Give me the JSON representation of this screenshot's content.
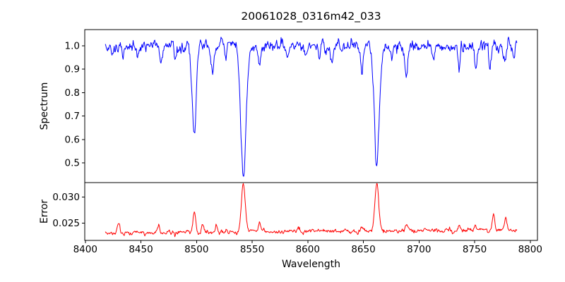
{
  "figure": {
    "title": "20061028_0316m42_033",
    "xlabel": "Wavelength",
    "background": "#ffffff",
    "axis_color": "#000000"
  },
  "chart_data": [
    {
      "type": "line",
      "panel": "spectrum",
      "title": "20061028_0316m42_033",
      "xlabel": "Wavelength",
      "ylabel": "Spectrum",
      "legend": null,
      "grid": false,
      "color": "#0000ff",
      "xlim": [
        8399.5,
        8806.5
      ],
      "ylim": [
        0.4157,
        1.0693
      ],
      "x_ticks": [
        8400,
        8450,
        8500,
        8550,
        8600,
        8650,
        8700,
        8750,
        8800
      ],
      "x_tick_labels": [
        "8400",
        "8450",
        "8500",
        "8550",
        "8600",
        "8650",
        "8700",
        "8750",
        "8800"
      ],
      "y_ticks": [
        0.5,
        0.6,
        0.7,
        0.8,
        0.9,
        1.0
      ],
      "y_tick_labels": [
        "0.5",
        "0.6",
        "0.7",
        "0.8",
        "0.9",
        "1.0"
      ],
      "samples": {
        "x_start": 8418,
        "x_end": 8788,
        "step": 0.5
      },
      "continuum": 1.0,
      "noise_sigma": 0.011,
      "noise_corr": 0.55,
      "noise_seed": 1337,
      "absorption_lines": [
        {
          "center": 8424.0,
          "depth": 0.04,
          "sigma": 1.0
        },
        {
          "center": 8434.0,
          "depth": 0.042,
          "sigma": 1.0
        },
        {
          "center": 8447.0,
          "depth": 0.035,
          "sigma": 1.0
        },
        {
          "center": 8468.0,
          "depth": 0.06,
          "sigma": 1.2
        },
        {
          "center": 8481.0,
          "depth": 0.04,
          "sigma": 1.0
        },
        {
          "center": 8498.0,
          "depth": 0.38,
          "sigma": 1.8
        },
        {
          "center": 8514.1,
          "depth": 0.11,
          "sigma": 1.2
        },
        {
          "center": 8526.0,
          "depth": 0.05,
          "sigma": 1.0
        },
        {
          "center": 8542.1,
          "depth": 0.545,
          "sigma": 2.4
        },
        {
          "center": 8556.8,
          "depth": 0.11,
          "sigma": 1.2
        },
        {
          "center": 8582.0,
          "depth": 0.05,
          "sigma": 1.0
        },
        {
          "center": 8598.0,
          "depth": 0.045,
          "sigma": 1.0
        },
        {
          "center": 8611.0,
          "depth": 0.055,
          "sigma": 1.0
        },
        {
          "center": 8621.5,
          "depth": 0.07,
          "sigma": 1.1
        },
        {
          "center": 8648.5,
          "depth": 0.1,
          "sigma": 1.2
        },
        {
          "center": 8662.1,
          "depth": 0.53,
          "sigma": 2.2
        },
        {
          "center": 8674.7,
          "depth": 0.055,
          "sigma": 1.0
        },
        {
          "center": 8688.6,
          "depth": 0.135,
          "sigma": 1.4
        },
        {
          "center": 8713.0,
          "depth": 0.06,
          "sigma": 1.1
        },
        {
          "center": 8736.0,
          "depth": 0.1,
          "sigma": 1.2
        },
        {
          "center": 8751.0,
          "depth": 0.1,
          "sigma": 1.2
        },
        {
          "center": 8764.0,
          "depth": 0.07,
          "sigma": 1.1
        },
        {
          "center": 8777.0,
          "depth": 0.08,
          "sigma": 1.1
        },
        {
          "center": 8785.0,
          "depth": 0.06,
          "sigma": 1.0
        }
      ]
    },
    {
      "type": "line",
      "panel": "error",
      "ylabel": "Error",
      "legend": null,
      "grid": false,
      "color": "#ff0000",
      "xlim": [
        8399.5,
        8806.5
      ],
      "ylim": [
        0.0217,
        0.0328
      ],
      "y_ticks": [
        0.025,
        0.03
      ],
      "y_tick_labels": [
        "0.025",
        "0.030"
      ],
      "samples": {
        "x_start": 8418,
        "x_end": 8788,
        "step": 0.5
      },
      "baseline_start": 0.0231,
      "baseline_end": 0.0237,
      "noise_sigma": 0.00018,
      "noise_corr": 0.5,
      "noise_seed": 911,
      "peaks": [
        {
          "center": 8430.0,
          "amp": 0.0022,
          "sigma": 1.0
        },
        {
          "center": 8466.0,
          "amp": 0.0016,
          "sigma": 1.0
        },
        {
          "center": 8498.0,
          "amp": 0.0044,
          "sigma": 1.3
        },
        {
          "center": 8505.5,
          "amp": 0.0018,
          "sigma": 1.0
        },
        {
          "center": 8518.0,
          "amp": 0.0014,
          "sigma": 1.0
        },
        {
          "center": 8542.1,
          "amp": 0.0092,
          "sigma": 1.8
        },
        {
          "center": 8556.8,
          "amp": 0.0016,
          "sigma": 1.0
        },
        {
          "center": 8592.0,
          "amp": 0.0007,
          "sigma": 1.0
        },
        {
          "center": 8648.5,
          "amp": 0.0008,
          "sigma": 1.0
        },
        {
          "center": 8662.1,
          "amp": 0.009,
          "sigma": 1.7
        },
        {
          "center": 8688.6,
          "amp": 0.0012,
          "sigma": 1.0
        },
        {
          "center": 8736.0,
          "amp": 0.0008,
          "sigma": 1.0
        },
        {
          "center": 8751.0,
          "amp": 0.0009,
          "sigma": 1.0
        },
        {
          "center": 8767.0,
          "amp": 0.0028,
          "sigma": 1.0
        },
        {
          "center": 8778.0,
          "amp": 0.0024,
          "sigma": 1.0
        }
      ]
    }
  ]
}
